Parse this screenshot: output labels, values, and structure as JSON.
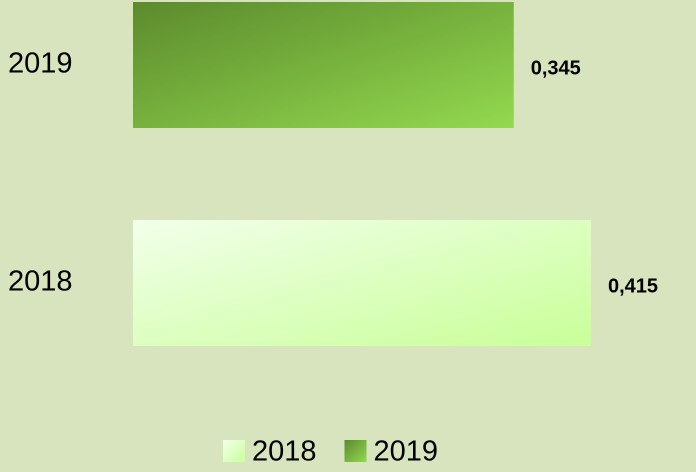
{
  "chart_data": {
    "type": "bar",
    "orientation": "horizontal",
    "categories": [
      "2018",
      "2019"
    ],
    "values": [
      0.415,
      0.345
    ],
    "value_labels": [
      "0,415",
      "0,345"
    ],
    "colors": [
      [
        "#f2ffea",
        "#c9ff98"
      ],
      [
        "#5c8a2d",
        "#93d94f"
      ]
    ],
    "legend": "bottom"
  }
}
